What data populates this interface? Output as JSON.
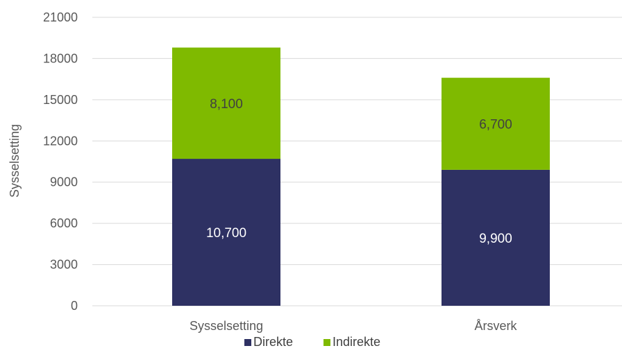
{
  "chart_data": {
    "type": "bar",
    "stacked": true,
    "categories": [
      "Sysselsetting",
      "Årsverk"
    ],
    "series": [
      {
        "name": "Direkte",
        "values": [
          10700,
          9900
        ],
        "labels": [
          "10,700",
          "9,900"
        ],
        "color": "#2e3163",
        "label_color": "#ffffff"
      },
      {
        "name": "Indirekte",
        "values": [
          8100,
          6700
        ],
        "labels": [
          "8,100",
          "6,700"
        ],
        "color": "#7fba00",
        "label_color": "#404040"
      }
    ],
    "ylabel": "Sysselsetting",
    "xlabel": "",
    "ylim": [
      0,
      21000
    ],
    "yticks": [
      "0",
      "3000",
      "6000",
      "9000",
      "12000",
      "15000",
      "18000",
      "21000"
    ],
    "grid": true,
    "gridline_color": "#d9d9d9",
    "legend_position": "bottom"
  }
}
